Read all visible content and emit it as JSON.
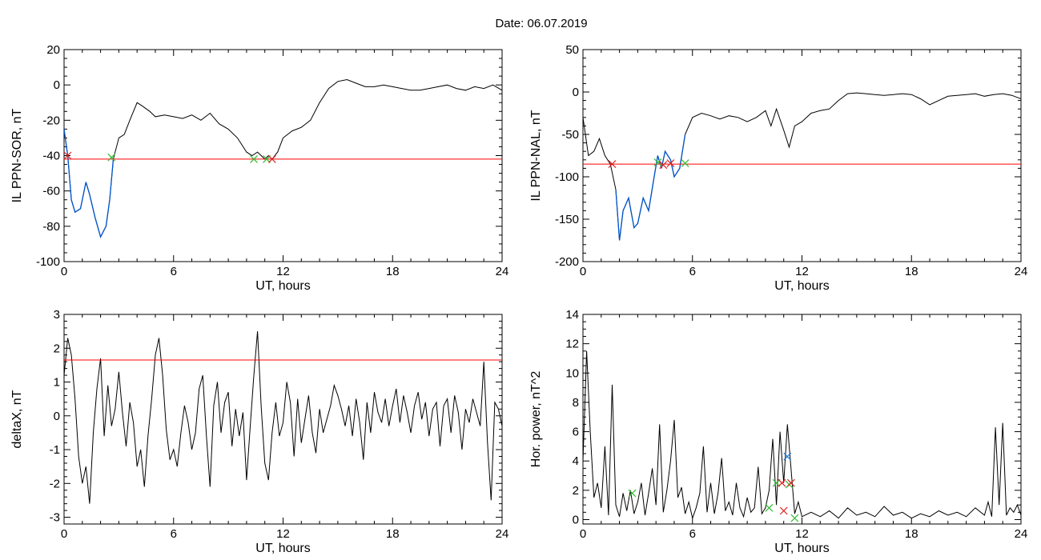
{
  "figure": {
    "title": "Date:  06.07.2019"
  },
  "colors": {
    "series": "#000000",
    "threshold": "#ff0000",
    "blue": "#0055cc",
    "green": "#33bb33",
    "red_marker": "#dd2222",
    "blue_marker": "#2277cc"
  },
  "chart_data": [
    {
      "id": "p1",
      "type": "line",
      "ylabel": "IL PPN-SOR, nT",
      "xlabel": "UT, hours",
      "xlim": [
        0,
        24
      ],
      "ylim": [
        -100,
        20
      ],
      "xticks": [
        "0",
        "6",
        "12",
        "18",
        "24"
      ],
      "yticks": [
        "-100",
        "-80",
        "-60",
        "-40",
        "-20",
        "0",
        "20"
      ],
      "threshold": -42,
      "series": [
        {
          "x": [
            0,
            0.2,
            0.4,
            0.6,
            0.9,
            1.2,
            1.4,
            1.7,
            2.0,
            2.3,
            2.5,
            2.7,
            3.0,
            3.3,
            3.6,
            4.0,
            4.3,
            4.7,
            5.0,
            5.5,
            6.0,
            6.5,
            7.0,
            7.5,
            8.0,
            8.5,
            9.0,
            9.5,
            10.0,
            10.3,
            10.6,
            10.8,
            11.0,
            11.2,
            11.4,
            11.7,
            12.0,
            12.5,
            13.0,
            13.5,
            14.0,
            14.5,
            15.0,
            15.5,
            16.0,
            16.5,
            17.0,
            17.5,
            18.0,
            18.5,
            19.0,
            19.5,
            20.0,
            20.5,
            21.0,
            21.5,
            22.0,
            22.5,
            23.0,
            23.5,
            24.0
          ],
          "y": [
            -25,
            -40,
            -65,
            -72,
            -70,
            -55,
            -62,
            -75,
            -86,
            -80,
            -65,
            -42,
            -30,
            -28,
            -20,
            -10,
            -12,
            -15,
            -18,
            -17,
            -18,
            -19,
            -17,
            -20,
            -16,
            -22,
            -25,
            -30,
            -38,
            -40,
            -38,
            -40,
            -42,
            -40,
            -42,
            -38,
            -30,
            -26,
            -24,
            -20,
            -10,
            -2,
            2,
            3,
            1,
            -1,
            -1,
            0,
            -1,
            -2,
            -3,
            -3,
            -2,
            -1,
            0,
            -2,
            -3,
            -1,
            -2,
            0,
            -3
          ]
        }
      ],
      "blue_segments": [
        [
          0,
          2.7
        ]
      ],
      "markers": [
        {
          "x": 0.2,
          "y": -40,
          "color": "red"
        },
        {
          "x": 2.6,
          "y": -41,
          "color": "green"
        },
        {
          "x": 10.4,
          "y": -42,
          "color": "green"
        },
        {
          "x": 11.1,
          "y": -42,
          "color": "green"
        },
        {
          "x": 11.4,
          "y": -42,
          "color": "red"
        }
      ]
    },
    {
      "id": "p2",
      "type": "line",
      "ylabel": "IL PPN-NAL, nT",
      "xlabel": "UT, hours",
      "xlim": [
        0,
        24
      ],
      "ylim": [
        -200,
        50
      ],
      "xticks": [
        "0",
        "6",
        "12",
        "18",
        "24"
      ],
      "yticks": [
        "-200",
        "-150",
        "-100",
        "-50",
        "0",
        "50"
      ],
      "threshold": -85,
      "series": [
        {
          "x": [
            0,
            0.3,
            0.6,
            0.9,
            1.2,
            1.5,
            1.8,
            2.0,
            2.2,
            2.5,
            2.8,
            3.0,
            3.3,
            3.6,
            3.9,
            4.1,
            4.3,
            4.5,
            4.8,
            5.0,
            5.3,
            5.6,
            6.0,
            6.5,
            7.0,
            7.5,
            8.0,
            8.5,
            9.0,
            9.5,
            10.0,
            10.3,
            10.6,
            11.0,
            11.3,
            11.6,
            12.0,
            12.5,
            13.0,
            13.5,
            14.0,
            14.5,
            15.0,
            15.5,
            16.0,
            16.5,
            17.0,
            17.5,
            18.0,
            18.5,
            19.0,
            19.5,
            20.0,
            20.5,
            21.0,
            21.5,
            22.0,
            22.5,
            23.0,
            23.5,
            24.0
          ],
          "y": [
            -30,
            -75,
            -70,
            -55,
            -75,
            -85,
            -115,
            -175,
            -140,
            -125,
            -160,
            -155,
            -125,
            -140,
            -100,
            -75,
            -90,
            -70,
            -80,
            -100,
            -90,
            -50,
            -30,
            -25,
            -28,
            -32,
            -28,
            -30,
            -35,
            -30,
            -22,
            -40,
            -20,
            -45,
            -65,
            -40,
            -35,
            -25,
            -22,
            -20,
            -10,
            -2,
            -1,
            -2,
            -3,
            -4,
            -3,
            -2,
            -3,
            -8,
            -15,
            -10,
            -5,
            -4,
            -3,
            -2,
            -5,
            -3,
            -2,
            -4,
            -8
          ]
        }
      ],
      "blue_segments": [
        [
          1.6,
          5.8
        ]
      ],
      "markers": [
        {
          "x": 1.6,
          "y": -85,
          "color": "red"
        },
        {
          "x": 4.1,
          "y": -83,
          "color": "green"
        },
        {
          "x": 4.4,
          "y": -86,
          "color": "red"
        },
        {
          "x": 4.8,
          "y": -84,
          "color": "red"
        },
        {
          "x": 5.6,
          "y": -84,
          "color": "green"
        }
      ]
    },
    {
      "id": "p3",
      "type": "line",
      "ylabel": "deltaX, nT",
      "xlabel": "UT, hours",
      "xlim": [
        0,
        24
      ],
      "ylim": [
        -3.2,
        3
      ],
      "xticks": [
        "0",
        "6",
        "12",
        "18",
        "24"
      ],
      "yticks": [
        "-3",
        "-2",
        "-1",
        "0",
        "1",
        "2",
        "3"
      ],
      "threshold": 1.65,
      "series": [
        {
          "x": [
            0,
            0.2,
            0.4,
            0.6,
            0.8,
            1.0,
            1.2,
            1.4,
            1.6,
            1.8,
            2.0,
            2.2,
            2.4,
            2.6,
            2.8,
            3.0,
            3.2,
            3.4,
            3.6,
            3.8,
            4.0,
            4.2,
            4.4,
            4.6,
            4.8,
            5.0,
            5.2,
            5.4,
            5.6,
            5.8,
            6.0,
            6.2,
            6.4,
            6.6,
            6.8,
            7.0,
            7.2,
            7.4,
            7.6,
            7.8,
            8.0,
            8.2,
            8.4,
            8.6,
            8.8,
            9.0,
            9.2,
            9.4,
            9.6,
            9.8,
            10.0,
            10.2,
            10.4,
            10.6,
            10.8,
            11.0,
            11.2,
            11.4,
            11.6,
            11.8,
            12.0,
            12.2,
            12.4,
            12.6,
            12.8,
            13.0,
            13.2,
            13.4,
            13.6,
            13.8,
            14.0,
            14.2,
            14.4,
            14.6,
            14.8,
            15.0,
            15.2,
            15.4,
            15.6,
            15.8,
            16.0,
            16.2,
            16.4,
            16.6,
            16.8,
            17.0,
            17.2,
            17.4,
            17.6,
            17.8,
            18.0,
            18.2,
            18.4,
            18.6,
            18.8,
            19.0,
            19.2,
            19.4,
            19.6,
            19.8,
            20.0,
            20.2,
            20.4,
            20.6,
            20.8,
            21.0,
            21.2,
            21.4,
            21.6,
            21.8,
            22.0,
            22.2,
            22.4,
            22.6,
            22.8,
            23.0,
            23.2,
            23.4,
            23.6,
            23.8,
            24.0
          ],
          "y": [
            1.2,
            2.3,
            1.8,
            0.5,
            -1.2,
            -2.0,
            -1.5,
            -2.6,
            -0.5,
            0.8,
            1.7,
            -0.6,
            0.9,
            -0.3,
            0.2,
            1.3,
            0.1,
            -0.9,
            0.4,
            -0.2,
            -1.5,
            -1.0,
            -2.1,
            -0.6,
            0.5,
            1.8,
            2.3,
            1.2,
            -0.4,
            -1.3,
            -1.0,
            -1.5,
            -0.5,
            0.3,
            -0.2,
            -1.0,
            -0.5,
            0.8,
            1.2,
            -0.6,
            -2.1,
            0.3,
            1.0,
            -0.5,
            0.4,
            0.7,
            -0.9,
            0.2,
            -0.6,
            0.1,
            -1.9,
            -0.3,
            1.2,
            2.5,
            0.3,
            -1.4,
            -1.9,
            -0.5,
            0.4,
            -0.6,
            -0.2,
            1.0,
            0.4,
            -1.2,
            0.5,
            -0.8,
            -0.1,
            0.6,
            -0.5,
            -1.1,
            0.2,
            -0.5,
            -0.1,
            0.3,
            0.9,
            0.6,
            0.2,
            -0.3,
            0.3,
            -0.6,
            0.5,
            -0.2,
            -1.3,
            0.4,
            -0.5,
            0.7,
            0.1,
            -0.2,
            0.5,
            -0.3,
            0.3,
            0.8,
            -0.2,
            0.6,
            0.1,
            -0.5,
            0.3,
            0.7,
            -0.1,
            0.4,
            -0.6,
            0.2,
            0.4,
            -0.9,
            0.3,
            0.5,
            -0.5,
            0.6,
            0.1,
            -1.0,
            0.2,
            -0.2,
            0.5,
            0.1,
            -0.3,
            1.6,
            -0.8,
            -2.5,
            0.4,
            0.2,
            -0.3
          ]
        }
      ],
      "blue_segments": [],
      "markers": []
    },
    {
      "id": "p4",
      "type": "line",
      "ylabel": "Hor. power, nT^2",
      "xlabel": "UT, hours",
      "xlim": [
        0,
        24
      ],
      "ylim": [
        -0.3,
        14
      ],
      "xticks": [
        "0",
        "6",
        "12",
        "18",
        "24"
      ],
      "yticks": [
        "0",
        "2",
        "4",
        "6",
        "8",
        "10",
        "12",
        "14"
      ],
      "threshold": null,
      "series": [
        {
          "x": [
            0,
            0.2,
            0.4,
            0.6,
            0.8,
            1.0,
            1.2,
            1.4,
            1.6,
            1.8,
            2.0,
            2.2,
            2.4,
            2.6,
            2.8,
            3.0,
            3.2,
            3.4,
            3.6,
            3.8,
            4.0,
            4.2,
            4.4,
            4.6,
            4.8,
            5.0,
            5.2,
            5.4,
            5.6,
            5.8,
            6.0,
            6.2,
            6.4,
            6.6,
            6.8,
            7.0,
            7.2,
            7.4,
            7.6,
            7.8,
            8.0,
            8.2,
            8.4,
            8.6,
            8.8,
            9.0,
            9.2,
            9.4,
            9.6,
            9.8,
            10.0,
            10.2,
            10.4,
            10.6,
            10.8,
            11.0,
            11.2,
            11.4,
            11.6,
            11.8,
            12.0,
            12.5,
            13.0,
            13.5,
            14.0,
            14.5,
            15.0,
            15.5,
            16.0,
            16.5,
            17.0,
            17.5,
            18.0,
            18.5,
            19.0,
            19.5,
            20.0,
            20.5,
            21.0,
            21.5,
            22.0,
            22.2,
            22.4,
            22.6,
            22.8,
            23.0,
            23.2,
            23.4,
            23.6,
            23.8,
            24.0
          ],
          "y": [
            4,
            11.5,
            6,
            1.5,
            2.5,
            0.8,
            5,
            0.3,
            9.2,
            1.0,
            0.2,
            1.8,
            0.6,
            2.0,
            0.4,
            1.2,
            2.5,
            0.3,
            1.8,
            3.5,
            1.0,
            6.5,
            0.5,
            2.0,
            4.0,
            6.8,
            1.5,
            2.2,
            0.4,
            1.2,
            0.1,
            0.8,
            1.8,
            5.0,
            0.5,
            2.5,
            0.4,
            1.8,
            4.2,
            0.6,
            1.2,
            0.3,
            2.5,
            0.8,
            0.2,
            1.5,
            0.5,
            0.8,
            3.6,
            0.4,
            0.8,
            2.0,
            5.5,
            1.0,
            6.0,
            2.5,
            6.5,
            3.5,
            0.4,
            1.2,
            0.2,
            0.5,
            0.2,
            0.6,
            0.1,
            0.8,
            0.3,
            0.5,
            0.2,
            0.9,
            0.3,
            0.5,
            0.1,
            0.4,
            0.2,
            0.6,
            0.3,
            0.5,
            0.2,
            0.8,
            0.3,
            1.2,
            0.2,
            6.3,
            1.0,
            6.6,
            0.3,
            0.8,
            0.5,
            1.0,
            0.3
          ]
        }
      ],
      "blue_segments": [],
      "markers": [
        {
          "x": 2.7,
          "y": 1.8,
          "color": "green"
        },
        {
          "x": 10.2,
          "y": 0.8,
          "color": "green"
        },
        {
          "x": 10.6,
          "y": 2.5,
          "color": "green"
        },
        {
          "x": 10.9,
          "y": 2.5,
          "color": "red"
        },
        {
          "x": 11.0,
          "y": 0.6,
          "color": "red"
        },
        {
          "x": 11.2,
          "y": 4.3,
          "color": "blue"
        },
        {
          "x": 11.3,
          "y": 2.4,
          "color": "green"
        },
        {
          "x": 11.4,
          "y": 2.5,
          "color": "red"
        },
        {
          "x": 11.6,
          "y": 0.1,
          "color": "green"
        }
      ]
    }
  ]
}
